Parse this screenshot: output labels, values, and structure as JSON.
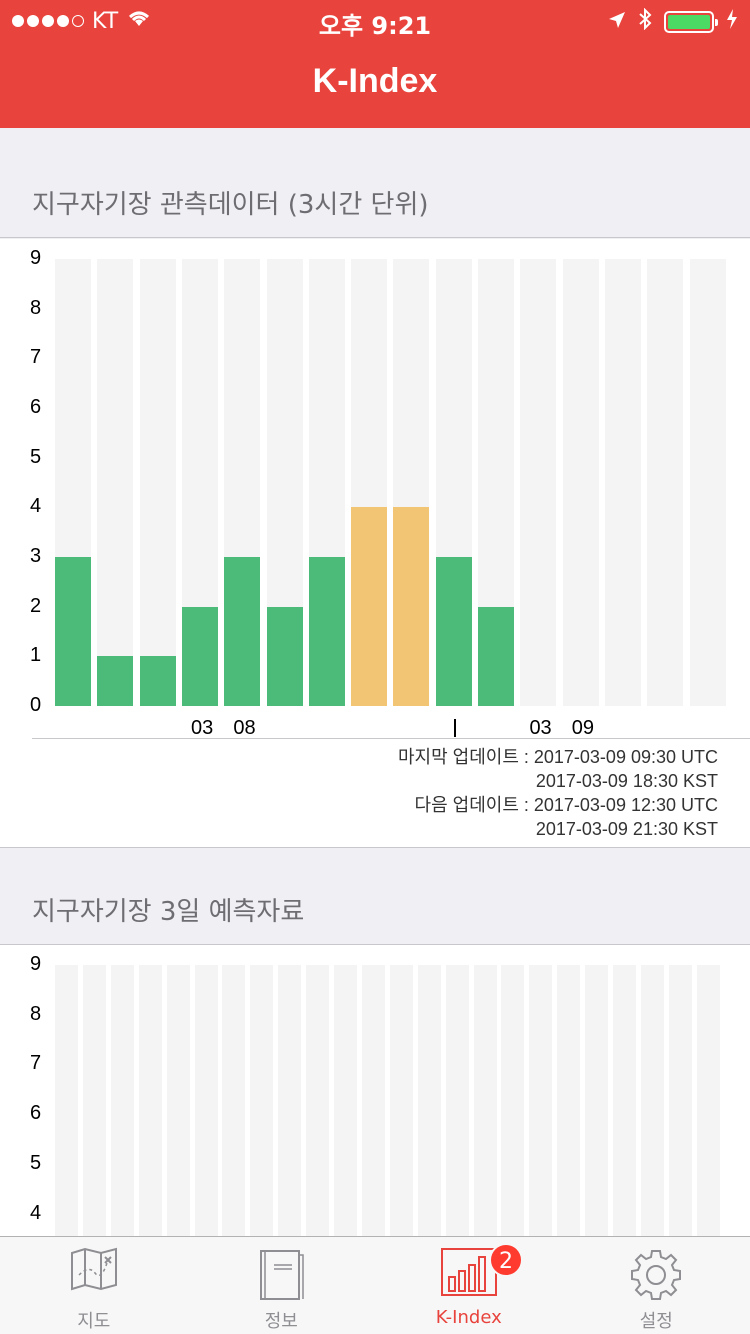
{
  "status_bar": {
    "carrier": "KT",
    "time": "오후 9:21"
  },
  "nav": {
    "title": "K-Index"
  },
  "observation": {
    "section_title": "지구자기장 관측데이터 (3시간 단위)",
    "y_ticks": [
      "9",
      "8",
      "7",
      "6",
      "5",
      "4",
      "3",
      "2",
      "1",
      "0"
    ],
    "x_labels": [
      {
        "text": "03",
        "slot": 3.5
      },
      {
        "text": "08",
        "slot": 4.5
      },
      {
        "text": "03",
        "slot": 11.5
      },
      {
        "text": "09",
        "slot": 12.5
      }
    ],
    "now_slot": 9,
    "last_update_label": "마지막 업데이트 : 2017-03-09 09:30 UTC",
    "last_update_kst": "2017-03-09 18:30 KST",
    "next_update_label": "다음 업데이트 : 2017-03-09 12:30 UTC",
    "next_update_kst": "2017-03-09 21:30 KST"
  },
  "forecast": {
    "section_title": "지구자기장 3일 예측자료",
    "y_ticks_visible": [
      "9",
      "8",
      "7",
      "6",
      "5",
      "4"
    ]
  },
  "colors": {
    "accent": "#e8433c",
    "bar_green": "#4cba78",
    "bar_orange": "#f2c574",
    "bar_bg": "#f4f4f4"
  },
  "chart_data": [
    {
      "type": "bar",
      "title": "지구자기장 관측데이터 (3시간 단위)",
      "ylim": [
        0,
        9
      ],
      "values": [
        3,
        1,
        1,
        2,
        3,
        2,
        3,
        4,
        4,
        3,
        2,
        null,
        null,
        null,
        null,
        null
      ],
      "bar_colors": [
        "green",
        "green",
        "green",
        "green",
        "green",
        "green",
        "green",
        "orange",
        "orange",
        "green",
        "green",
        null,
        null,
        null,
        null,
        null
      ],
      "x_tick_labels": [
        "03",
        "08",
        "03",
        "09"
      ]
    },
    {
      "type": "bar",
      "title": "지구자기장 3일 예측자료",
      "ylim": [
        0,
        9
      ],
      "values": [
        null,
        null,
        null,
        null,
        null,
        null,
        null,
        null,
        null,
        null,
        null,
        null,
        null,
        null,
        null,
        null,
        null,
        null,
        null,
        null,
        null,
        null,
        null,
        null
      ]
    }
  ],
  "tabs": [
    {
      "label": "지도",
      "icon": "map-icon"
    },
    {
      "label": "정보",
      "icon": "book-icon"
    },
    {
      "label": "K-Index",
      "icon": "bar-chart-icon",
      "badge": "2"
    },
    {
      "label": "설정",
      "icon": "gear-icon"
    }
  ]
}
